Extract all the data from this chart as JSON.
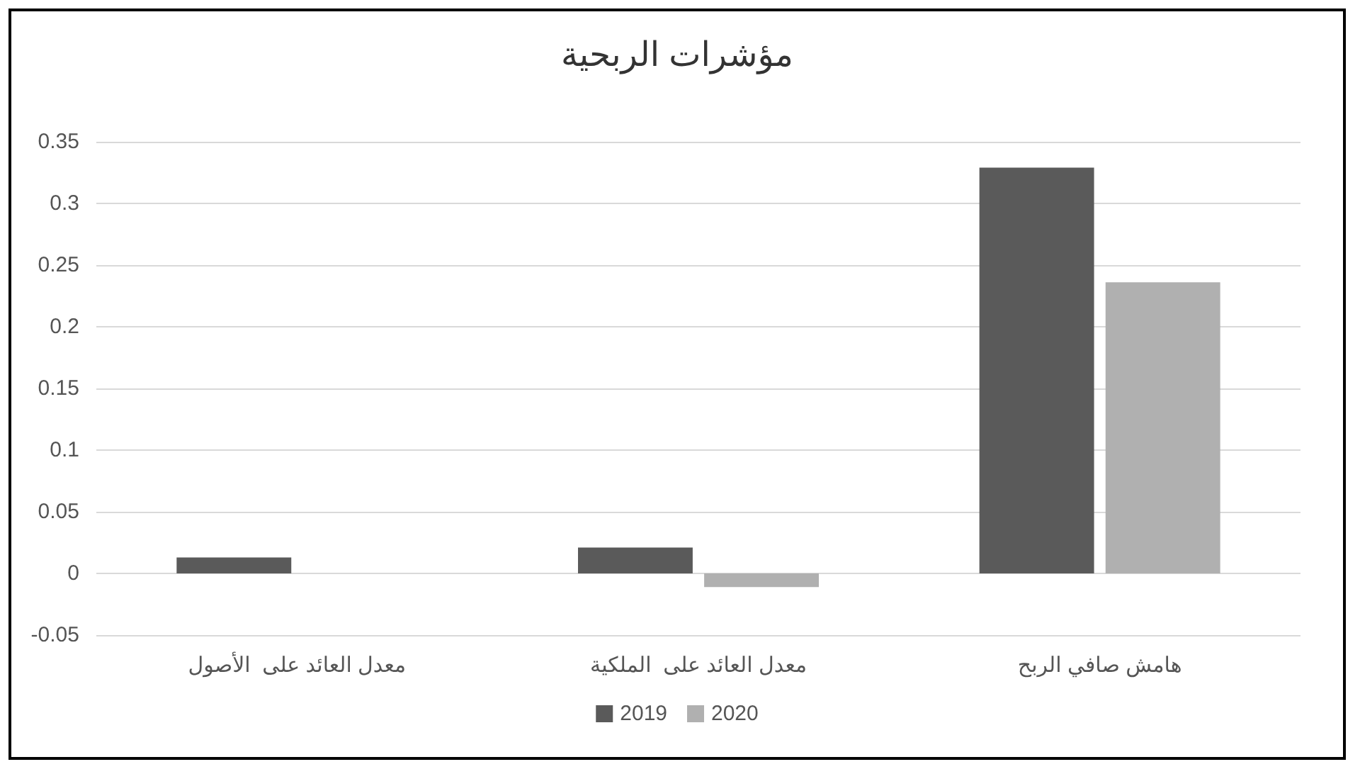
{
  "chart_data": {
    "type": "bar",
    "title": "مؤشرات الربحية",
    "categories": [
      "معدل العائد على  الأصول",
      "معدل العائد على  الملكية",
      "هامش صافي الربح"
    ],
    "series": [
      {
        "name": "2019",
        "color": "#5a5a5a",
        "values": [
          0.013,
          0.021,
          0.329
        ]
      },
      {
        "name": "2020",
        "color": "#b0b0b0",
        "values": [
          0,
          -0.011,
          0.236
        ]
      }
    ],
    "ylim": [
      -0.05,
      0.35
    ],
    "yticks": [
      -0.05,
      0,
      0.05,
      0.1,
      0.15,
      0.2,
      0.25,
      0.3,
      0.35
    ],
    "grid": "y",
    "legend": "bottom"
  }
}
